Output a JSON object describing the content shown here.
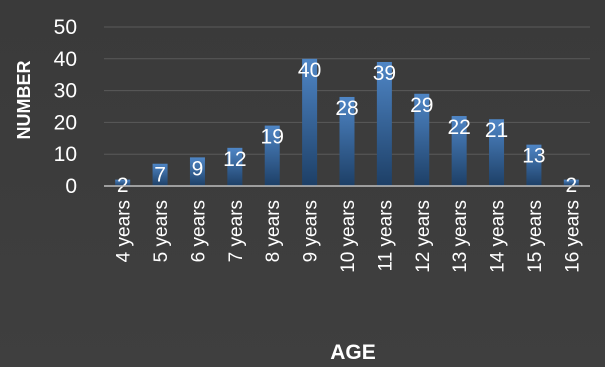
{
  "chart_data": {
    "type": "bar",
    "categories": [
      "4 years",
      "5 years",
      "6 years",
      "7 years",
      "8 years",
      "9 years",
      "10 years",
      "11 years",
      "12 years",
      "13 years",
      "14 years",
      "15 years",
      "16 years"
    ],
    "values": [
      2,
      7,
      9,
      12,
      19,
      40,
      28,
      39,
      29,
      22,
      21,
      13,
      2
    ],
    "data_labels": [
      "2",
      "7",
      "9",
      "12",
      "19",
      "40",
      "28",
      "39",
      "29",
      "22",
      "21",
      "13",
      "2"
    ],
    "xlabel": "AGE",
    "ylabel": "NUMBER",
    "ylim": [
      0,
      50
    ],
    "yticks": [
      "0",
      "10",
      "20",
      "30",
      "40",
      "50"
    ],
    "grid": true,
    "legend": "none",
    "colors": {
      "bar_top": "#4f86c6",
      "bar_bottom": "#1d3f66",
      "text": "#ffffff",
      "grid": "#5a5a5a",
      "axis": "#bfbfbf",
      "background": "#3c3c3c"
    }
  }
}
